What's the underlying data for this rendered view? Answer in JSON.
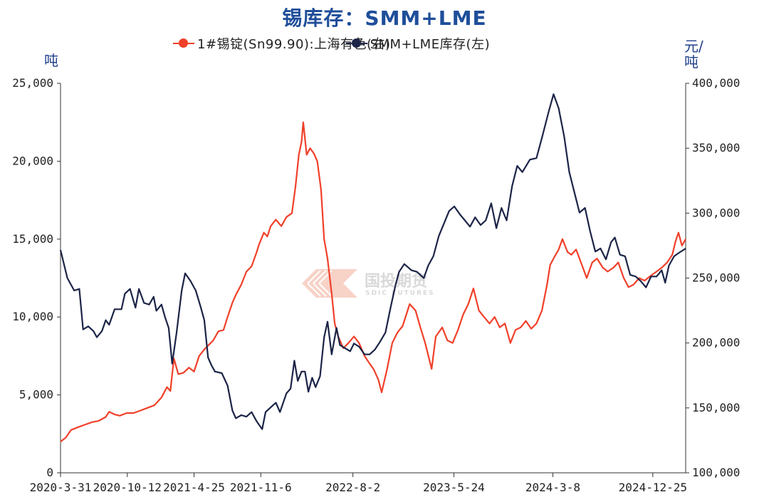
{
  "title": "锡库存：SMM+LME",
  "legend": {
    "price": "1#锡锭(Sn99.90):上海有色(右)",
    "inventory": "SMM+LME库存(左)"
  },
  "watermark": {
    "name": "国投期货",
    "sub": "SDIC FUTURES"
  },
  "colors": {
    "price": "#f0402a",
    "inventory": "#1c2447",
    "title": "#1f4e9a"
  },
  "chart_data": {
    "type": "line",
    "title": "锡库存：SMM+LME",
    "left_axis": {
      "label": "吨",
      "range": [
        0,
        25000
      ],
      "ticks": [
        "0",
        "5,000",
        "10,000",
        "15,000",
        "20,000",
        "25,000"
      ]
    },
    "right_axis": {
      "label": "元/吨",
      "range": [
        100000,
        400000
      ],
      "ticks": [
        "100,000",
        "150,000",
        "200,000",
        "250,000",
        "300,000",
        "350,000",
        "400,000"
      ]
    },
    "x_axis": {
      "range": [
        "2020-03-31",
        "2025-03-31"
      ],
      "ticks": [
        "2020-3-31",
        "2020-10-12",
        "2021-4-25",
        "2021-11-6",
        "2022-8-2",
        "2023-5-24",
        "2024-3-8",
        "2024-12-25"
      ]
    },
    "grid": false,
    "legend_position": "top",
    "series": [
      {
        "name": "SMM+LME库存(左)",
        "axis": "left",
        "points": [
          [
            "2020-03-31",
            14300
          ],
          [
            "2020-04-20",
            12500
          ],
          [
            "2020-05-10",
            11700
          ],
          [
            "2020-05-25",
            11800
          ],
          [
            "2020-06-05",
            9200
          ],
          [
            "2020-06-20",
            9400
          ],
          [
            "2020-07-05",
            9100
          ],
          [
            "2020-07-15",
            8700
          ],
          [
            "2020-07-30",
            9100
          ],
          [
            "2020-08-10",
            9800
          ],
          [
            "2020-08-20",
            9500
          ],
          [
            "2020-09-05",
            10500
          ],
          [
            "2020-09-25",
            10500
          ],
          [
            "2020-10-05",
            11500
          ],
          [
            "2020-10-20",
            11800
          ],
          [
            "2020-11-05",
            10600
          ],
          [
            "2020-11-15",
            11800
          ],
          [
            "2020-11-30",
            10900
          ],
          [
            "2020-12-15",
            10800
          ],
          [
            "2020-12-28",
            11300
          ],
          [
            "2021-01-05",
            10400
          ],
          [
            "2021-01-20",
            10800
          ],
          [
            "2021-01-30",
            10000
          ],
          [
            "2021-02-10",
            9300
          ],
          [
            "2021-02-20",
            7000
          ],
          [
            "2021-03-05",
            9000
          ],
          [
            "2021-03-20",
            11700
          ],
          [
            "2021-03-30",
            12800
          ],
          [
            "2021-04-15",
            12300
          ],
          [
            "2021-04-30",
            11700
          ],
          [
            "2021-05-15",
            10600
          ],
          [
            "2021-05-25",
            9800
          ],
          [
            "2021-06-05",
            7400
          ],
          [
            "2021-06-15",
            6900
          ],
          [
            "2021-06-25",
            6500
          ],
          [
            "2021-07-15",
            6400
          ],
          [
            "2021-08-01",
            5600
          ],
          [
            "2021-08-15",
            4000
          ],
          [
            "2021-08-25",
            3500
          ],
          [
            "2021-09-10",
            3700
          ],
          [
            "2021-09-25",
            3600
          ],
          [
            "2021-10-10",
            3900
          ],
          [
            "2021-10-25",
            3300
          ],
          [
            "2021-11-10",
            2800
          ],
          [
            "2021-11-20",
            3900
          ],
          [
            "2021-12-05",
            4200
          ],
          [
            "2021-12-20",
            4500
          ],
          [
            "2022-01-01",
            3900
          ],
          [
            "2022-01-20",
            5100
          ],
          [
            "2022-02-01",
            5400
          ],
          [
            "2022-02-12",
            7200
          ],
          [
            "2022-02-22",
            5900
          ],
          [
            "2022-03-05",
            6500
          ],
          [
            "2022-03-15",
            6500
          ],
          [
            "2022-03-25",
            5200
          ],
          [
            "2022-04-05",
            6100
          ],
          [
            "2022-04-15",
            5500
          ],
          [
            "2022-04-28",
            6200
          ],
          [
            "2022-05-10",
            8700
          ],
          [
            "2022-05-20",
            9700
          ],
          [
            "2022-06-01",
            7600
          ],
          [
            "2022-06-15",
            9300
          ],
          [
            "2022-06-25",
            8200
          ],
          [
            "2022-07-10",
            8000
          ],
          [
            "2022-07-25",
            7800
          ],
          [
            "2022-08-05",
            8300
          ],
          [
            "2022-08-20",
            8100
          ],
          [
            "2022-09-05",
            7600
          ],
          [
            "2022-09-20",
            7600
          ],
          [
            "2022-10-05",
            7900
          ],
          [
            "2022-10-20",
            8400
          ],
          [
            "2022-11-05",
            9000
          ],
          [
            "2022-11-20",
            10600
          ],
          [
            "2022-12-05",
            12100
          ],
          [
            "2022-12-15",
            12900
          ],
          [
            "2022-12-30",
            13400
          ],
          [
            "2023-01-20",
            13000
          ],
          [
            "2023-02-05",
            12900
          ],
          [
            "2023-02-25",
            12500
          ],
          [
            "2023-03-10",
            13300
          ],
          [
            "2023-03-25",
            13900
          ],
          [
            "2023-04-10",
            15200
          ],
          [
            "2023-04-25",
            16000
          ],
          [
            "2023-05-10",
            16800
          ],
          [
            "2023-05-25",
            17100
          ],
          [
            "2023-06-10",
            16600
          ],
          [
            "2023-06-25",
            16200
          ],
          [
            "2023-07-10",
            15800
          ],
          [
            "2023-07-25",
            16400
          ],
          [
            "2023-08-10",
            15900
          ],
          [
            "2023-08-25",
            16200
          ],
          [
            "2023-09-10",
            17300
          ],
          [
            "2023-09-25",
            15700
          ],
          [
            "2023-10-10",
            17000
          ],
          [
            "2023-10-25",
            16200
          ],
          [
            "2023-11-10",
            18400
          ],
          [
            "2023-11-25",
            19700
          ],
          [
            "2023-12-10",
            19300
          ],
          [
            "2024-01-01",
            20100
          ],
          [
            "2024-01-20",
            20200
          ],
          [
            "2024-02-05",
            21500
          ],
          [
            "2024-02-25",
            23200
          ],
          [
            "2024-03-10",
            24300
          ],
          [
            "2024-03-25",
            23400
          ],
          [
            "2024-04-10",
            21600
          ],
          [
            "2024-04-25",
            19300
          ],
          [
            "2024-05-10",
            18000
          ],
          [
            "2024-05-25",
            16700
          ],
          [
            "2024-06-10",
            17000
          ],
          [
            "2024-06-25",
            15500
          ],
          [
            "2024-07-10",
            14200
          ],
          [
            "2024-07-25",
            14400
          ],
          [
            "2024-08-10",
            13700
          ],
          [
            "2024-08-25",
            14800
          ],
          [
            "2024-09-05",
            15100
          ],
          [
            "2024-09-20",
            14000
          ],
          [
            "2024-10-05",
            13900
          ],
          [
            "2024-10-20",
            12700
          ],
          [
            "2024-11-05",
            12600
          ],
          [
            "2024-11-20",
            12300
          ],
          [
            "2024-12-05",
            11900
          ],
          [
            "2024-12-20",
            12600
          ],
          [
            "2025-01-05",
            12600
          ],
          [
            "2025-01-20",
            13000
          ],
          [
            "2025-01-30",
            12200
          ],
          [
            "2025-02-10",
            13300
          ],
          [
            "2025-02-25",
            13900
          ],
          [
            "2025-03-10",
            14100
          ],
          [
            "2025-03-31",
            14400
          ]
        ]
      },
      {
        "name": "1#锡锭(Sn99.90):上海有色(右)",
        "axis": "right",
        "points": [
          [
            "2020-03-31",
            124000
          ],
          [
            "2020-04-15",
            127000
          ],
          [
            "2020-05-01",
            133000
          ],
          [
            "2020-05-20",
            135000
          ],
          [
            "2020-06-10",
            137000
          ],
          [
            "2020-07-01",
            139000
          ],
          [
            "2020-07-20",
            140000
          ],
          [
            "2020-08-10",
            143000
          ],
          [
            "2020-08-20",
            147000
          ],
          [
            "2020-09-05",
            145000
          ],
          [
            "2020-09-20",
            144000
          ],
          [
            "2020-10-10",
            146000
          ],
          [
            "2020-10-30",
            146000
          ],
          [
            "2020-11-20",
            148000
          ],
          [
            "2020-12-10",
            150000
          ],
          [
            "2020-12-30",
            152000
          ],
          [
            "2021-01-20",
            158000
          ],
          [
            "2021-02-05",
            166000
          ],
          [
            "2021-02-15",
            163000
          ],
          [
            "2021-02-25",
            188000
          ],
          [
            "2021-03-10",
            176000
          ],
          [
            "2021-03-25",
            177000
          ],
          [
            "2021-04-10",
            181000
          ],
          [
            "2021-04-25",
            178000
          ],
          [
            "2021-05-10",
            190000
          ],
          [
            "2021-05-25",
            195000
          ],
          [
            "2021-06-05",
            198000
          ],
          [
            "2021-06-20",
            202000
          ],
          [
            "2021-07-05",
            209000
          ],
          [
            "2021-07-20",
            210000
          ],
          [
            "2021-08-01",
            220000
          ],
          [
            "2021-08-15",
            231000
          ],
          [
            "2021-08-25",
            237000
          ],
          [
            "2021-09-10",
            245000
          ],
          [
            "2021-09-25",
            255000
          ],
          [
            "2021-10-10",
            259000
          ],
          [
            "2021-10-25",
            270000
          ],
          [
            "2021-11-01",
            276000
          ],
          [
            "2021-11-15",
            285000
          ],
          [
            "2021-11-25",
            282000
          ],
          [
            "2021-12-05",
            290000
          ],
          [
            "2021-12-20",
            295000
          ],
          [
            "2022-01-05",
            290000
          ],
          [
            "2022-01-20",
            297000
          ],
          [
            "2022-02-05",
            300000
          ],
          [
            "2022-02-15",
            320000
          ],
          [
            "2022-02-25",
            345000
          ],
          [
            "2022-03-05",
            355000
          ],
          [
            "2022-03-10",
            370000
          ],
          [
            "2022-03-20",
            345000
          ],
          [
            "2022-03-30",
            350000
          ],
          [
            "2022-04-10",
            346000
          ],
          [
            "2022-04-20",
            340000
          ],
          [
            "2022-05-01",
            318000
          ],
          [
            "2022-05-10",
            280000
          ],
          [
            "2022-05-20",
            265000
          ],
          [
            "2022-06-01",
            238000
          ],
          [
            "2022-06-10",
            215000
          ],
          [
            "2022-06-20",
            205000
          ],
          [
            "2022-07-05",
            196000
          ],
          [
            "2022-07-20",
            200000
          ],
          [
            "2022-08-05",
            205000
          ],
          [
            "2022-08-20",
            200000
          ],
          [
            "2022-09-05",
            190000
          ],
          [
            "2022-09-20",
            184000
          ],
          [
            "2022-10-01",
            180000
          ],
          [
            "2022-10-15",
            172000
          ],
          [
            "2022-10-25",
            162000
          ],
          [
            "2022-11-10",
            180000
          ],
          [
            "2022-11-25",
            200000
          ],
          [
            "2022-12-10",
            208000
          ],
          [
            "2022-12-25",
            213000
          ],
          [
            "2023-01-15",
            230000
          ],
          [
            "2023-02-01",
            225000
          ],
          [
            "2023-02-15",
            212000
          ],
          [
            "2023-03-01",
            200000
          ],
          [
            "2023-03-20",
            180000
          ],
          [
            "2023-04-01",
            205000
          ],
          [
            "2023-04-20",
            212000
          ],
          [
            "2023-05-05",
            202000
          ],
          [
            "2023-05-20",
            200000
          ],
          [
            "2023-06-05",
            210000
          ],
          [
            "2023-06-20",
            222000
          ],
          [
            "2023-07-05",
            230000
          ],
          [
            "2023-07-20",
            242000
          ],
          [
            "2023-08-05",
            225000
          ],
          [
            "2023-08-20",
            220000
          ],
          [
            "2023-09-05",
            215000
          ],
          [
            "2023-09-20",
            220000
          ],
          [
            "2023-10-05",
            212000
          ],
          [
            "2023-10-20",
            215000
          ],
          [
            "2023-11-05",
            200000
          ],
          [
            "2023-11-20",
            210000
          ],
          [
            "2023-12-05",
            212000
          ],
          [
            "2023-12-20",
            217000
          ],
          [
            "2024-01-05",
            211000
          ],
          [
            "2024-01-20",
            215000
          ],
          [
            "2024-02-05",
            225000
          ],
          [
            "2024-02-20",
            245000
          ],
          [
            "2024-02-29",
            260000
          ],
          [
            "2024-03-10",
            265000
          ],
          [
            "2024-03-25",
            272000
          ],
          [
            "2024-04-05",
            280000
          ],
          [
            "2024-04-20",
            270000
          ],
          [
            "2024-05-01",
            268000
          ],
          [
            "2024-05-15",
            272000
          ],
          [
            "2024-06-01",
            260000
          ],
          [
            "2024-06-15",
            250000
          ],
          [
            "2024-07-01",
            262000
          ],
          [
            "2024-07-15",
            265000
          ],
          [
            "2024-08-01",
            258000
          ],
          [
            "2024-08-15",
            255000
          ],
          [
            "2024-09-01",
            258000
          ],
          [
            "2024-09-15",
            262000
          ],
          [
            "2024-10-01",
            250000
          ],
          [
            "2024-10-15",
            243000
          ],
          [
            "2024-10-30",
            245000
          ],
          [
            "2024-11-15",
            250000
          ],
          [
            "2024-12-01",
            248000
          ],
          [
            "2024-12-20",
            252000
          ],
          [
            "2025-01-05",
            255000
          ],
          [
            "2025-01-20",
            258000
          ],
          [
            "2025-02-05",
            262000
          ],
          [
            "2025-02-20",
            268000
          ],
          [
            "2025-03-01",
            278000
          ],
          [
            "2025-03-10",
            285000
          ],
          [
            "2025-03-20",
            275000
          ],
          [
            "2025-03-31",
            280000
          ]
        ]
      }
    ]
  }
}
